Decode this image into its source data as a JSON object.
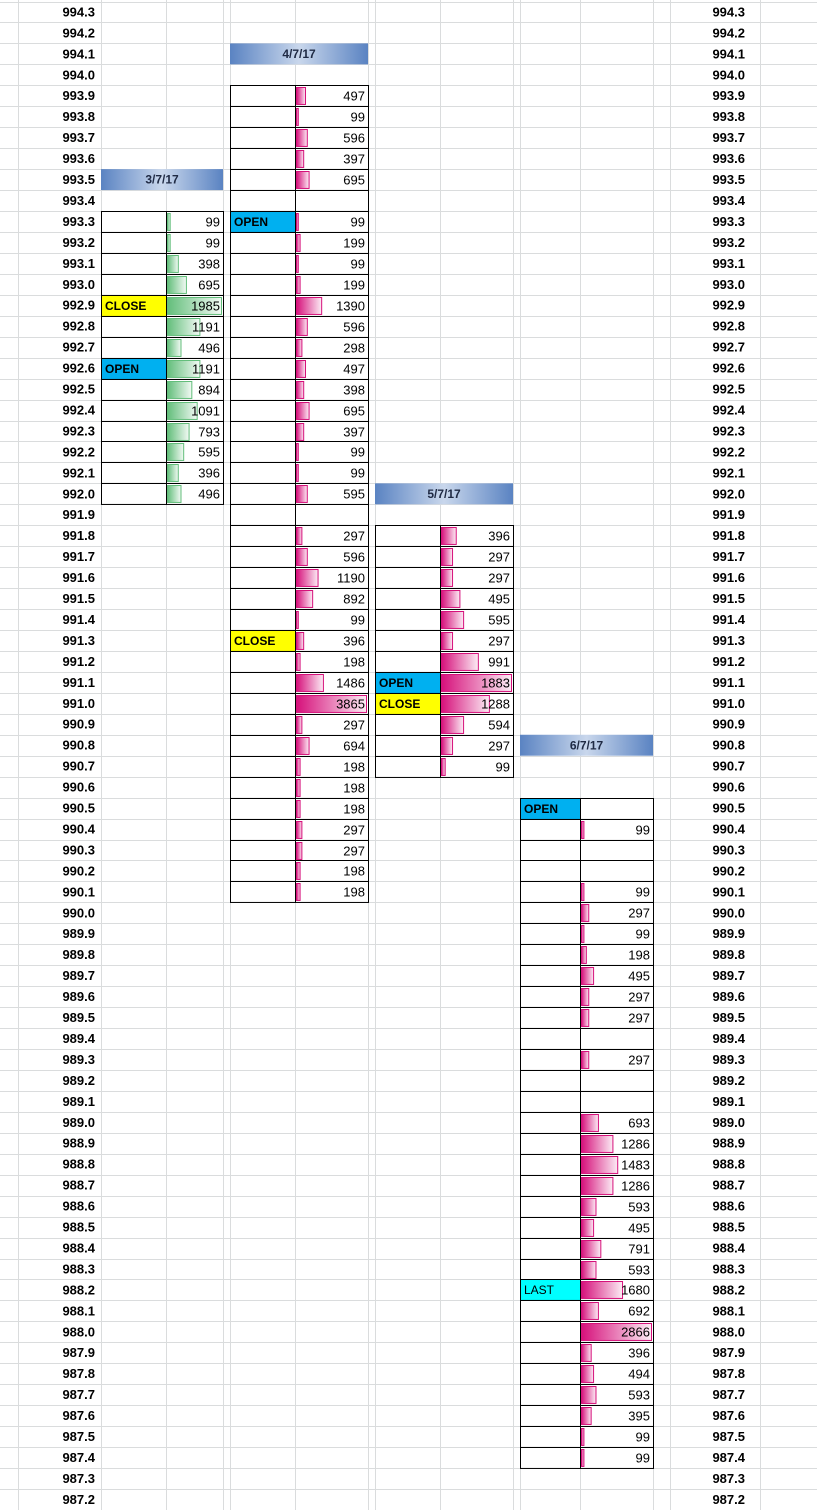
{
  "prices": [
    "994.3",
    "994.2",
    "994.1",
    "994.0",
    "993.9",
    "993.8",
    "993.7",
    "993.6",
    "993.5",
    "993.4",
    "993.3",
    "993.2",
    "993.1",
    "993.0",
    "992.9",
    "992.8",
    "992.7",
    "992.6",
    "992.5",
    "992.4",
    "992.3",
    "992.2",
    "992.1",
    "992.0",
    "991.9",
    "991.8",
    "991.7",
    "991.6",
    "991.5",
    "991.4",
    "991.3",
    "991.2",
    "991.1",
    "991.0",
    "990.9",
    "990.8",
    "990.7",
    "990.6",
    "990.5",
    "990.4",
    "990.3",
    "990.2",
    "990.1",
    "990.0",
    "989.9",
    "989.8",
    "989.7",
    "989.6",
    "989.5",
    "989.4",
    "989.3",
    "989.2",
    "989.1",
    "989.0",
    "988.9",
    "988.8",
    "988.7",
    "988.6",
    "988.5",
    "988.4",
    "988.3",
    "988.2",
    "988.1",
    "988.0",
    "987.9",
    "987.8",
    "987.7",
    "987.6",
    "987.5",
    "987.4",
    "987.3",
    "987.2"
  ],
  "label_colors": {
    "OPEN": "#00b0f0",
    "CLOSE": "#ffff00",
    "LAST": "#00ffff"
  },
  "blocks": [
    {
      "date": "3/7/17",
      "header_price": "993.5",
      "bar_color": "#63be7b",
      "rows": [
        {
          "price": "993.3",
          "volume": 99
        },
        {
          "price": "993.2",
          "volume": 99
        },
        {
          "price": "993.1",
          "volume": 398
        },
        {
          "price": "993.0",
          "volume": 695
        },
        {
          "price": "992.9",
          "label": "CLOSE",
          "volume": 1985
        },
        {
          "price": "992.8",
          "volume": 1191
        },
        {
          "price": "992.7",
          "volume": 496
        },
        {
          "price": "992.6",
          "label": "OPEN",
          "volume": 1191
        },
        {
          "price": "992.5",
          "volume": 894
        },
        {
          "price": "992.4",
          "volume": 1091
        },
        {
          "price": "992.3",
          "volume": 793
        },
        {
          "price": "992.2",
          "volume": 595
        },
        {
          "price": "992.1",
          "volume": 396
        },
        {
          "price": "992.0",
          "volume": 496
        }
      ]
    },
    {
      "date": "4/7/17",
      "header_price": "994.1",
      "bar_color": "#d6117b",
      "rows": [
        {
          "price": "993.9",
          "volume": 497
        },
        {
          "price": "993.8",
          "volume": 99
        },
        {
          "price": "993.7",
          "volume": 596
        },
        {
          "price": "993.6",
          "volume": 397
        },
        {
          "price": "993.5",
          "volume": 695
        },
        {
          "price": "993.4",
          "volume": null
        },
        {
          "price": "993.3",
          "label": "OPEN",
          "volume": 99
        },
        {
          "price": "993.2",
          "volume": 199
        },
        {
          "price": "993.1",
          "volume": 99
        },
        {
          "price": "993.0",
          "volume": 199
        },
        {
          "price": "992.9",
          "volume": 1390
        },
        {
          "price": "992.8",
          "volume": 596
        },
        {
          "price": "992.7",
          "volume": 298
        },
        {
          "price": "992.6",
          "volume": 497
        },
        {
          "price": "992.5",
          "volume": 398
        },
        {
          "price": "992.4",
          "volume": 695
        },
        {
          "price": "992.3",
          "volume": 397
        },
        {
          "price": "992.2",
          "volume": 99
        },
        {
          "price": "992.1",
          "volume": 99
        },
        {
          "price": "992.0",
          "volume": 595
        },
        {
          "price": "991.9",
          "volume": null
        },
        {
          "price": "991.8",
          "volume": 297
        },
        {
          "price": "991.7",
          "volume": 596
        },
        {
          "price": "991.6",
          "volume": 1190
        },
        {
          "price": "991.5",
          "volume": 892
        },
        {
          "price": "991.4",
          "volume": 99
        },
        {
          "price": "991.3",
          "label": "CLOSE",
          "volume": 396
        },
        {
          "price": "991.2",
          "volume": 198
        },
        {
          "price": "991.1",
          "volume": 1486
        },
        {
          "price": "991.0",
          "volume": 3865
        },
        {
          "price": "990.9",
          "volume": 297
        },
        {
          "price": "990.8",
          "volume": 694
        },
        {
          "price": "990.7",
          "volume": 198
        },
        {
          "price": "990.6",
          "volume": 198
        },
        {
          "price": "990.5",
          "volume": 198
        },
        {
          "price": "990.4",
          "volume": 297
        },
        {
          "price": "990.3",
          "volume": 297
        },
        {
          "price": "990.2",
          "volume": 198
        },
        {
          "price": "990.1",
          "volume": 198
        }
      ]
    },
    {
      "date": "5/7/17",
      "header_price": "992.0",
      "bar_color": "#d6117b",
      "rows": [
        {
          "price": "991.8",
          "volume": 396
        },
        {
          "price": "991.7",
          "volume": 297
        },
        {
          "price": "991.6",
          "volume": 297
        },
        {
          "price": "991.5",
          "volume": 495
        },
        {
          "price": "991.4",
          "volume": 595
        },
        {
          "price": "991.3",
          "volume": 297
        },
        {
          "price": "991.2",
          "volume": 991
        },
        {
          "price": "991.1",
          "label": "OPEN",
          "volume": 1883
        },
        {
          "price": "991.0",
          "label": "CLOSE",
          "volume": 1288
        },
        {
          "price": "990.9",
          "volume": 594
        },
        {
          "price": "990.8",
          "volume": 297
        },
        {
          "price": "990.7",
          "volume": 99
        }
      ]
    },
    {
      "date": "6/7/17",
      "header_price": "990.8",
      "bar_color": "#d6117b",
      "rows": [
        {
          "price": "990.5",
          "label": "OPEN",
          "volume": null
        },
        {
          "price": "990.4",
          "volume": 99
        },
        {
          "price": "990.3",
          "volume": null
        },
        {
          "price": "990.2",
          "volume": null
        },
        {
          "price": "990.1",
          "volume": 99
        },
        {
          "price": "990.0",
          "volume": 297
        },
        {
          "price": "989.9",
          "volume": 99
        },
        {
          "price": "989.8",
          "volume": 198
        },
        {
          "price": "989.7",
          "volume": 495
        },
        {
          "price": "989.6",
          "volume": 297
        },
        {
          "price": "989.5",
          "volume": 297
        },
        {
          "price": "989.4",
          "volume": null
        },
        {
          "price": "989.3",
          "volume": 297
        },
        {
          "price": "989.2",
          "volume": null
        },
        {
          "price": "989.1",
          "volume": null
        },
        {
          "price": "989.0",
          "volume": 693
        },
        {
          "price": "988.9",
          "volume": 1286
        },
        {
          "price": "988.8",
          "volume": 1483
        },
        {
          "price": "988.7",
          "volume": 1286
        },
        {
          "price": "988.6",
          "volume": 593
        },
        {
          "price": "988.5",
          "volume": 495
        },
        {
          "price": "988.4",
          "volume": 791
        },
        {
          "price": "988.3",
          "volume": 593
        },
        {
          "price": "988.2",
          "label": "LAST",
          "volume": 1680
        },
        {
          "price": "988.1",
          "volume": 692
        },
        {
          "price": "988.0",
          "volume": 2866
        },
        {
          "price": "987.9",
          "volume": 396
        },
        {
          "price": "987.8",
          "volume": 494
        },
        {
          "price": "987.7",
          "volume": 593
        },
        {
          "price": "987.6",
          "volume": 395
        },
        {
          "price": "987.5",
          "volume": 99
        },
        {
          "price": "987.4",
          "volume": 99
        }
      ]
    }
  ]
}
